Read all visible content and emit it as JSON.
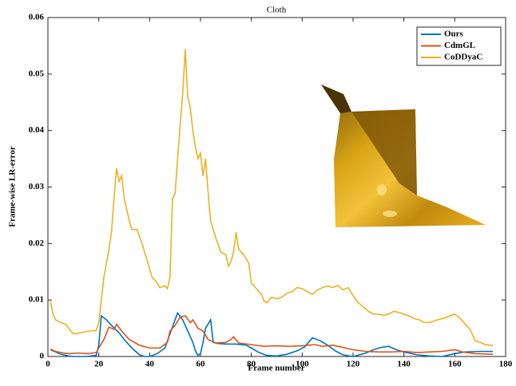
{
  "chart_data": {
    "type": "line",
    "title": "Cloth",
    "x_label": "Frame number",
    "y_label": "Frame-wise LR-error",
    "xlim": [
      0,
      180
    ],
    "ylim": [
      0,
      0.06
    ],
    "xticks": [
      0,
      20,
      40,
      60,
      80,
      100,
      120,
      140,
      160,
      180
    ],
    "yticks": [
      0,
      0.01,
      0.02,
      0.03,
      0.04,
      0.05,
      0.06
    ],
    "legend_position": "upper right",
    "series": [
      {
        "name": "Ours",
        "color": "#0072bd",
        "x": [
          1,
          3,
          5,
          8,
          10,
          15,
          19,
          20,
          21,
          23,
          25,
          28,
          30,
          33,
          36,
          38,
          40,
          43,
          46,
          48,
          50,
          51,
          53,
          55,
          57,
          58,
          59,
          60,
          61,
          62,
          64,
          65,
          67,
          70,
          74,
          78,
          80,
          83,
          86,
          90,
          94,
          98,
          101,
          104,
          107,
          110,
          113,
          116,
          120,
          125,
          128,
          131,
          134,
          137,
          140,
          145,
          150,
          155,
          160,
          164,
          170,
          175
        ],
        "values": [
          0.0012,
          0.0008,
          0.0004,
          0.0001,
          0,
          0,
          0.0002,
          0.002,
          0.0072,
          0.0065,
          0.0055,
          0.0042,
          0.003,
          0.0015,
          0.0003,
          0,
          0,
          0.0005,
          0.0015,
          0.004,
          0.0065,
          0.0077,
          0.0065,
          0.0045,
          0.0025,
          0.001,
          0.0002,
          0.0005,
          0.0025,
          0.005,
          0.0065,
          0.0025,
          0.0023,
          0.0022,
          0.0022,
          0.002,
          0.0015,
          0.0007,
          0.0002,
          0.0001,
          0.0004,
          0.001,
          0.0017,
          0.0033,
          0.0028,
          0.002,
          0.001,
          0.0003,
          0,
          0.0006,
          0.0012,
          0.0016,
          0.0018,
          0.0012,
          0.0008,
          0.0003,
          0.0001,
          0,
          0.0005,
          0.0008,
          0.0009,
          0.0009
        ]
      },
      {
        "name": "CdmGL",
        "color": "#d95319",
        "x": [
          1,
          3,
          5,
          8,
          12,
          16,
          19,
          20,
          22,
          24,
          26,
          27,
          29,
          32,
          36,
          40,
          44,
          47,
          48,
          50,
          52,
          54,
          56,
          57,
          59,
          61,
          63,
          66,
          70,
          72,
          73,
          75,
          80,
          85,
          90,
          95,
          100,
          105,
          108,
          112,
          115,
          120,
          125,
          130,
          135,
          140,
          145,
          150,
          155,
          160,
          163,
          168,
          175
        ],
        "values": [
          0.0013,
          0.0009,
          0.0007,
          0.0005,
          0.0006,
          0.0005,
          0.0007,
          0.0015,
          0.003,
          0.0052,
          0.0048,
          0.0057,
          0.0045,
          0.003,
          0.002,
          0.0015,
          0.0015,
          0.0025,
          0.0045,
          0.0055,
          0.007,
          0.0072,
          0.006,
          0.0065,
          0.005,
          0.0045,
          0.003,
          0.0024,
          0.0025,
          0.003,
          0.0035,
          0.0024,
          0.0021,
          0.0018,
          0.0019,
          0.0018,
          0.0019,
          0.0021,
          0.0018,
          0.002,
          0.0017,
          0.0012,
          0.0009,
          0.0008,
          0.0008,
          0.0009,
          0.0007,
          0.0008,
          0.0009,
          0.0012,
          0.0008,
          0.0005,
          0.0004
        ]
      },
      {
        "name": "CoDDyaC",
        "color": "#edb120",
        "x": [
          1,
          2,
          3,
          5,
          7,
          9,
          10,
          13,
          16,
          19,
          20,
          21,
          22,
          24,
          25,
          26,
          27,
          28,
          29,
          30,
          32,
          33,
          35,
          37,
          39,
          41,
          43,
          44,
          46,
          47,
          48,
          49,
          50,
          51,
          52,
          53,
          54,
          55,
          56,
          57,
          58,
          59,
          60,
          61,
          62,
          63,
          64,
          66,
          68,
          70,
          71,
          72,
          73,
          74,
          75,
          77,
          79,
          80,
          82,
          84,
          85,
          86,
          88,
          90,
          92,
          94,
          96,
          98,
          100,
          102,
          104,
          106,
          108,
          110,
          112,
          114,
          116,
          118,
          120,
          122,
          124,
          126,
          128,
          130,
          132,
          134,
          136,
          138,
          140,
          142,
          144,
          146,
          148,
          150,
          152,
          154,
          156,
          158,
          160,
          162,
          164,
          166,
          168,
          170,
          172,
          174,
          175
        ],
        "values": [
          0.0098,
          0.0075,
          0.0065,
          0.006,
          0.0057,
          0.0045,
          0.004,
          0.0042,
          0.0045,
          0.0046,
          0.006,
          0.01,
          0.014,
          0.019,
          0.022,
          0.028,
          0.0333,
          0.031,
          0.032,
          0.028,
          0.024,
          0.0225,
          0.0225,
          0.02,
          0.017,
          0.014,
          0.013,
          0.0122,
          0.0125,
          0.012,
          0.014,
          0.028,
          0.0288,
          0.035,
          0.041,
          0.0465,
          0.0544,
          0.046,
          0.044,
          0.04,
          0.037,
          0.035,
          0.036,
          0.032,
          0.035,
          0.029,
          0.024,
          0.021,
          0.0185,
          0.018,
          0.016,
          0.0168,
          0.0185,
          0.022,
          0.019,
          0.018,
          0.0165,
          0.013,
          0.012,
          0.011,
          0.0098,
          0.0095,
          0.0105,
          0.0102,
          0.0105,
          0.0112,
          0.0115,
          0.0122,
          0.012,
          0.0115,
          0.011,
          0.0118,
          0.0122,
          0.0125,
          0.0122,
          0.0126,
          0.0118,
          0.0122,
          0.0108,
          0.0095,
          0.0088,
          0.008,
          0.0075,
          0.0075,
          0.0073,
          0.0075,
          0.008,
          0.0078,
          0.0075,
          0.0072,
          0.0067,
          0.0065,
          0.006,
          0.006,
          0.0063,
          0.0066,
          0.0068,
          0.0072,
          0.0075,
          0.0068,
          0.0058,
          0.0048,
          0.0028,
          0.0025,
          0.0021,
          0.002,
          0.0019
        ]
      }
    ]
  }
}
